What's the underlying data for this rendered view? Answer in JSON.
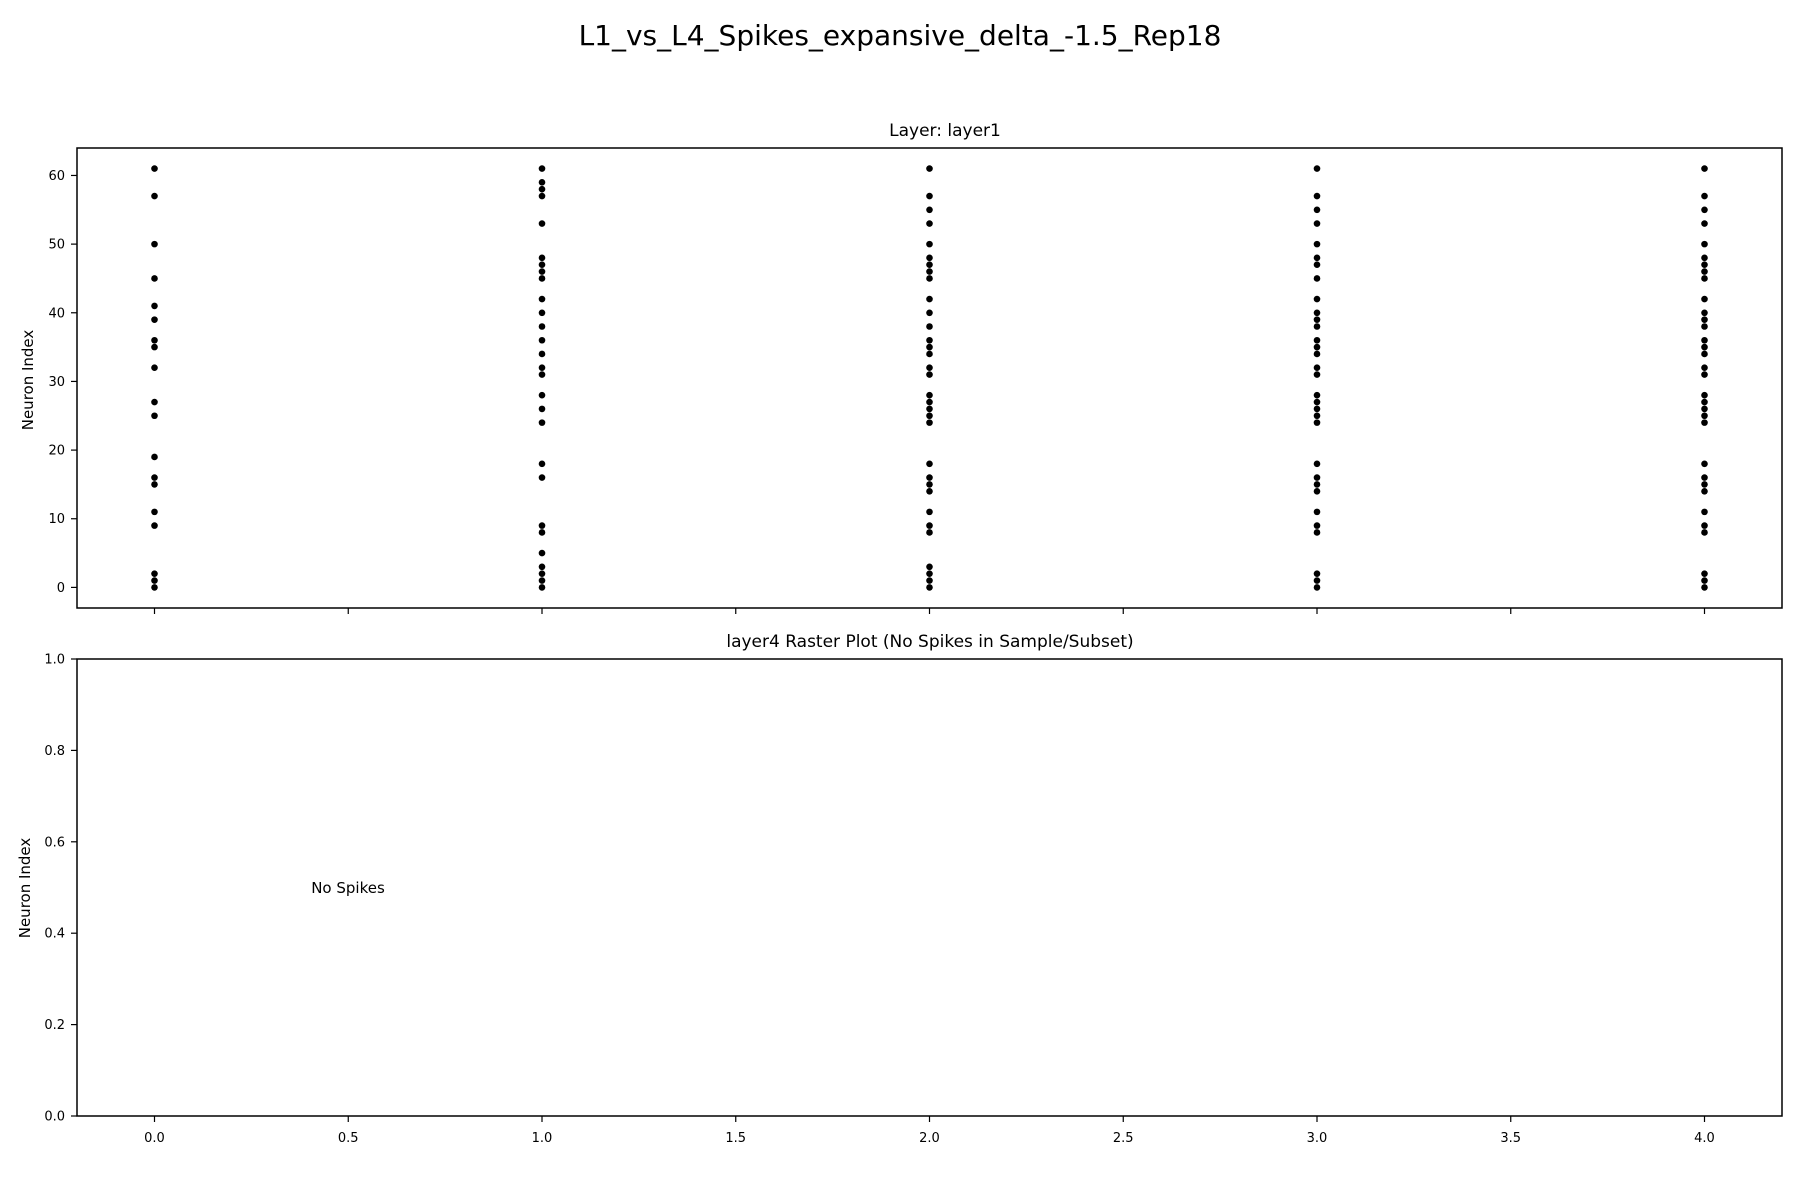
{
  "figure": {
    "suptitle": "L1_vs_L4_Spikes_expansive_delta_-1.5_Rep18"
  },
  "chart_data": [
    {
      "type": "scatter",
      "title": "Layer: layer1",
      "ylabel": "Neuron Index",
      "xlabel": "",
      "xlim": [
        -0.2,
        4.2
      ],
      "ylim": [
        -3,
        64
      ],
      "xticks": [
        0.0,
        0.5,
        1.0,
        1.5,
        2.0,
        2.5,
        3.0,
        3.5,
        4.0
      ],
      "xtick_labels_visible": false,
      "yticks": [
        0,
        10,
        20,
        30,
        40,
        50,
        60
      ],
      "ytick_labels": [
        "0",
        "10",
        "20",
        "30",
        "40",
        "50",
        "60"
      ],
      "marker_color": "#000000",
      "grid": false,
      "series": [
        {
          "x": 0,
          "neurons": [
            0,
            1,
            2,
            9,
            11,
            15,
            16,
            19,
            25,
            27,
            32,
            35,
            36,
            39,
            41,
            45,
            50,
            57,
            61
          ]
        },
        {
          "x": 1,
          "neurons": [
            0,
            1,
            2,
            3,
            5,
            8,
            9,
            16,
            18,
            24,
            26,
            28,
            31,
            32,
            34,
            36,
            38,
            40,
            42,
            45,
            46,
            47,
            48,
            53,
            57,
            58,
            59,
            61
          ]
        },
        {
          "x": 2,
          "neurons": [
            0,
            1,
            2,
            3,
            8,
            9,
            11,
            14,
            15,
            16,
            18,
            24,
            25,
            26,
            27,
            28,
            31,
            32,
            34,
            35,
            36,
            38,
            40,
            42,
            45,
            46,
            47,
            48,
            50,
            53,
            55,
            57,
            61
          ]
        },
        {
          "x": 3,
          "neurons": [
            0,
            1,
            2,
            8,
            9,
            11,
            14,
            15,
            16,
            18,
            24,
            25,
            26,
            27,
            28,
            31,
            32,
            34,
            35,
            36,
            38,
            39,
            40,
            42,
            45,
            47,
            48,
            50,
            53,
            55,
            57,
            61
          ]
        },
        {
          "x": 4,
          "neurons": [
            0,
            1,
            2,
            8,
            9,
            11,
            14,
            15,
            16,
            18,
            24,
            25,
            26,
            27,
            28,
            31,
            32,
            34,
            35,
            36,
            38,
            39,
            40,
            42,
            45,
            46,
            47,
            48,
            50,
            53,
            55,
            57,
            61
          ]
        }
      ]
    },
    {
      "type": "scatter",
      "title": "layer4 Raster Plot (No Spikes in Sample/Subset)",
      "ylabel": "Neuron Index",
      "xlabel": "",
      "xlim": [
        -0.2,
        4.2
      ],
      "ylim": [
        0.0,
        1.0
      ],
      "xticks": [
        0.0,
        0.5,
        1.0,
        1.5,
        2.0,
        2.5,
        3.0,
        3.5,
        4.0
      ],
      "xtick_labels": [
        "0.0",
        "0.5",
        "1.0",
        "1.5",
        "2.0",
        "2.5",
        "3.0",
        "3.5",
        "4.0"
      ],
      "yticks": [
        0.0,
        0.2,
        0.4,
        0.6,
        0.8,
        1.0
      ],
      "ytick_labels": [
        "0.0",
        "0.2",
        "0.4",
        "0.6",
        "0.8",
        "1.0"
      ],
      "grid": false,
      "series": [],
      "annotation": {
        "text": "No Spikes",
        "x": 0.5,
        "y": 0.5
      }
    }
  ]
}
